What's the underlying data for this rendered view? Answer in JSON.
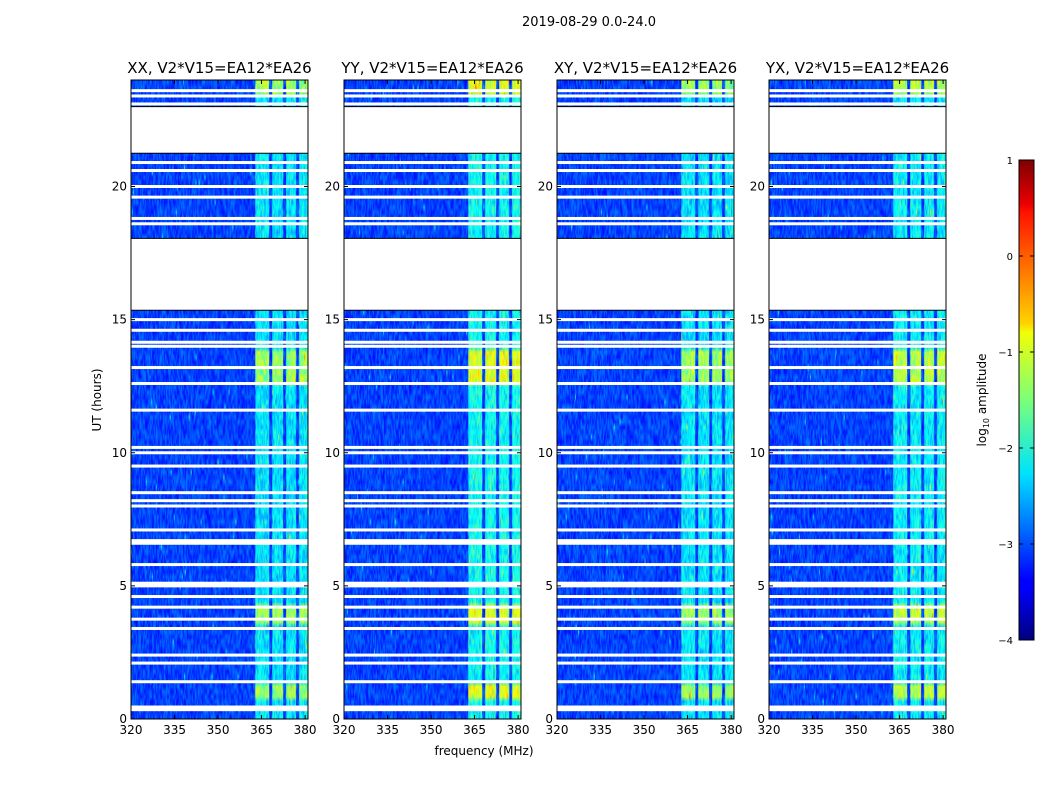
{
  "chart_data": {
    "type": "heatmap",
    "suptitle": "2019-08-29 0.0-24.0",
    "xlabel": "frequency (MHz)",
    "ylabel": "UT (hours)",
    "xlim": [
      320,
      381
    ],
    "ylim": [
      0,
      24
    ],
    "xticks": [
      "320",
      "335",
      "350",
      "365",
      "380"
    ],
    "xtick_values": [
      320,
      335,
      350,
      365,
      380
    ],
    "yticks": [
      "0",
      "5",
      "10",
      "15",
      "20"
    ],
    "ytick_values": [
      0,
      5,
      10,
      15,
      20
    ],
    "panels": [
      {
        "title": "XX, V2*V15=EA12*EA26",
        "strength": 0.9
      },
      {
        "title": "YY, V2*V15=EA12*EA26",
        "strength": 1.15
      },
      {
        "title": "XY, V2*V15=EA12*EA26",
        "strength": 0.9
      },
      {
        "title": "YX, V2*V15=EA12*EA26",
        "strength": 1.0
      }
    ],
    "colorbar": {
      "label": "log10 amplitude",
      "label_main": "log",
      "label_sub": "10",
      "label_rest": " amplitude",
      "range": [
        -4,
        1
      ],
      "ticks": [
        "1",
        "0",
        "−1",
        "−2",
        "−3",
        "−4"
      ],
      "tick_values": [
        1,
        0,
        -1,
        -2,
        -3,
        -4
      ]
    },
    "no_data_hours": [
      [
        15.35,
        18.05
      ],
      [
        21.25,
        23.0
      ]
    ],
    "flag_hours": [
      0.35,
      0.45,
      1.4,
      2.1,
      2.4,
      3.4,
      3.75,
      4.2,
      4.6,
      5.0,
      5.1,
      5.8,
      6.6,
      6.7,
      7.1,
      8.0,
      8.2,
      8.5,
      9.5,
      10.0,
      10.2,
      11.6,
      12.6,
      13.2,
      14.0,
      14.15,
      14.6,
      15.0,
      18.6,
      18.8,
      19.6,
      20.0,
      20.6,
      20.9,
      23.1,
      23.4,
      23.6
    ],
    "rfi_bands_mhz": [
      [
        363.0,
        367.5
      ],
      [
        368.5,
        372.5
      ],
      [
        373.5,
        377.0
      ],
      [
        378.0,
        381.0
      ]
    ],
    "strong_hours": [
      [
        0.7,
        1.3
      ],
      [
        3.5,
        4.3
      ],
      [
        12.5,
        13.9
      ],
      [
        23.5,
        24.0
      ]
    ]
  }
}
